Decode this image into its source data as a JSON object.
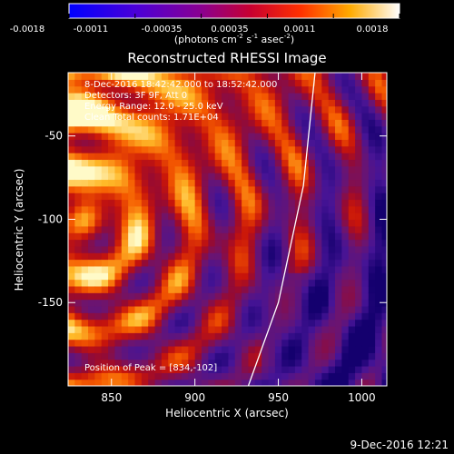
{
  "chart_data": {
    "type": "heatmap",
    "title": "Reconstructed RHESSI Image",
    "xlabel": "Heliocentric X (arcsec)",
    "ylabel": "Heliocentric Y (arcsec)",
    "xlim": [
      824,
      1015
    ],
    "ylim": [
      -200,
      -12
    ],
    "xticks": [
      850,
      900,
      950,
      1000
    ],
    "yticks": [
      -50,
      -100,
      -150
    ],
    "colorbar": {
      "ticks": [
        "-0.0018",
        "-0.0011",
        "-0.00035",
        "0.00035",
        "0.0011",
        "0.0018"
      ],
      "range": [
        -0.0018,
        0.0018
      ],
      "label_main": "(photons cm",
      "label_sup1": "-2",
      "label_mid1": " s",
      "label_sup2": "-1",
      "label_mid2": " asec",
      "label_sup3": "-2",
      "label_end": ")"
    },
    "annotations": [
      "8-Dec-2016 18:42:42.000 to 18:52:42.000",
      "Detectors: 3F 9F, Att 0",
      "Energy Range: 12.0 - 25.0 keV",
      "Clean     Total counts: 1.71E+04"
    ],
    "peak_label": "Position of Peak = [834,-102]",
    "peak": [
      834,
      -102
    ],
    "limb_curve": [
      [
        972,
        -12
      ],
      [
        965,
        -80
      ],
      [
        950,
        -150
      ],
      [
        932,
        -200
      ]
    ],
    "grid": false
  },
  "footer": {
    "timestamp": "9-Dec-2016 12:21"
  }
}
